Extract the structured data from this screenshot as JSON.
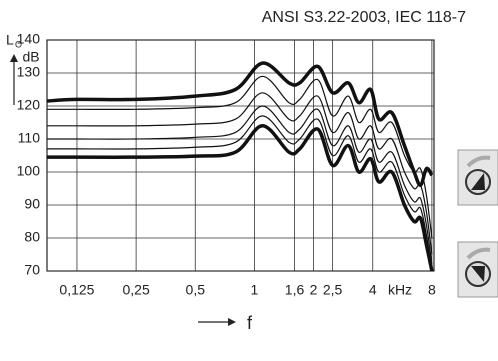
{
  "chart_data": {
    "type": "line",
    "title": "ANSI S3.22-2003, IEC 118-7",
    "y_label": "L",
    "y_label_sub": "O",
    "y_unit": "dB",
    "x_label": "f",
    "x_unit": "kHz",
    "log_x": true,
    "grid": true,
    "x": [
      0.088,
      0.125,
      0.25,
      0.5,
      0.8,
      1.1,
      1.5,
      1.7,
      2.1,
      2.5,
      3.0,
      3.4,
      3.9,
      4.3,
      5.0,
      5.8,
      6.5,
      7.0,
      7.5,
      8.0
    ],
    "xlim": [
      0.088,
      8.2
    ],
    "xticks": [
      {
        "value": 0.125,
        "label": "0,125"
      },
      {
        "value": 0.25,
        "label": "0,25"
      },
      {
        "value": 0.5,
        "label": "0,5"
      },
      1,
      {
        "value": 1.6,
        "label": "1,6"
      },
      2,
      {
        "value": 2.5,
        "label": "2,5"
      },
      4,
      8
    ],
    "ylim": [
      70,
      140
    ],
    "yticks": [
      70,
      80,
      90,
      100,
      110,
      120,
      130,
      140
    ],
    "series": [
      {
        "color": "#111",
        "width": 3.5,
        "values": [
          121.5,
          122,
          122,
          123,
          125,
          133,
          127,
          127,
          132,
          124,
          127,
          121,
          125,
          116,
          118,
          108,
          100,
          96,
          101,
          99
        ]
      },
      {
        "color": "#111",
        "width": 1.2,
        "values": [
          119,
          119,
          119,
          119.5,
          121,
          129,
          121,
          122,
          128,
          117,
          123,
          115,
          119,
          112,
          115,
          105,
          100,
          101,
          93,
          80
        ]
      },
      {
        "color": "#111",
        "width": 1.2,
        "values": [
          114,
          114,
          114,
          114.5,
          116,
          124,
          116,
          117,
          123,
          112,
          118,
          110,
          114,
          107,
          110,
          100,
          95,
          96,
          88,
          75
        ]
      },
      {
        "color": "#111",
        "width": 1.2,
        "values": [
          110,
          110,
          110,
          110.5,
          112,
          120,
          112,
          113,
          119,
          108,
          114,
          106,
          110,
          103,
          106,
          96,
          91,
          92,
          84,
          72
        ]
      },
      {
        "color": "#111",
        "width": 1.2,
        "values": [
          107,
          107,
          107,
          107.5,
          109,
          117,
          109,
          110,
          116,
          105,
          111,
          103,
          107,
          100,
          103,
          93,
          88,
          89,
          81,
          70
        ]
      },
      {
        "color": "#111",
        "width": 3.5,
        "values": [
          104.5,
          104.5,
          104.5,
          104.8,
          106,
          114,
          106,
          107,
          113,
          102,
          108,
          100,
          104,
          97,
          100,
          90,
          85,
          86,
          78,
          70
        ]
      }
    ]
  }
}
